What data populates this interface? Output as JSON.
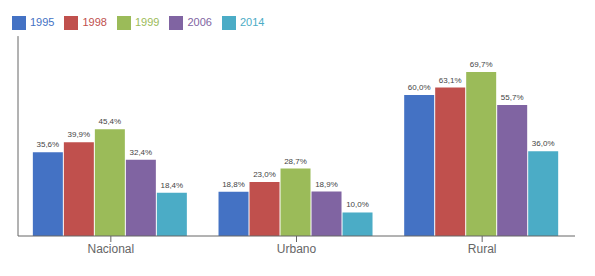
{
  "chart_data": {
    "type": "bar",
    "categories": [
      "Nacional",
      "Urbano",
      "Rural"
    ],
    "series": [
      {
        "name": "1995",
        "color": "#4472C4",
        "values": [
          35.6,
          18.8,
          60.0
        ],
        "value_labels": [
          "35,6%",
          "18,8%",
          "60,0%"
        ]
      },
      {
        "name": "1998",
        "color": "#C0504D",
        "values": [
          39.9,
          23.0,
          63.1
        ],
        "value_labels": [
          "39,9%",
          "23,0%",
          "63,1%"
        ]
      },
      {
        "name": "1999",
        "color": "#9BBB59",
        "values": [
          45.4,
          28.7,
          69.7
        ],
        "value_labels": [
          "45,4%",
          "28,7%",
          "69,7%"
        ]
      },
      {
        "name": "2006",
        "color": "#8064A2",
        "values": [
          32.4,
          18.9,
          55.7
        ],
        "value_labels": [
          "32,4%",
          "18,9%",
          "55,7%"
        ]
      },
      {
        "name": "2014",
        "color": "#4BACC6",
        "values": [
          18.4,
          10.0,
          36.0
        ],
        "value_labels": [
          "18,4%",
          "10,0%",
          "36,0%"
        ]
      }
    ],
    "ylim": [
      0,
      85
    ],
    "yticks": [],
    "tick_labels": "x",
    "legend": "upper left",
    "data_labels": true,
    "grid": false
  }
}
